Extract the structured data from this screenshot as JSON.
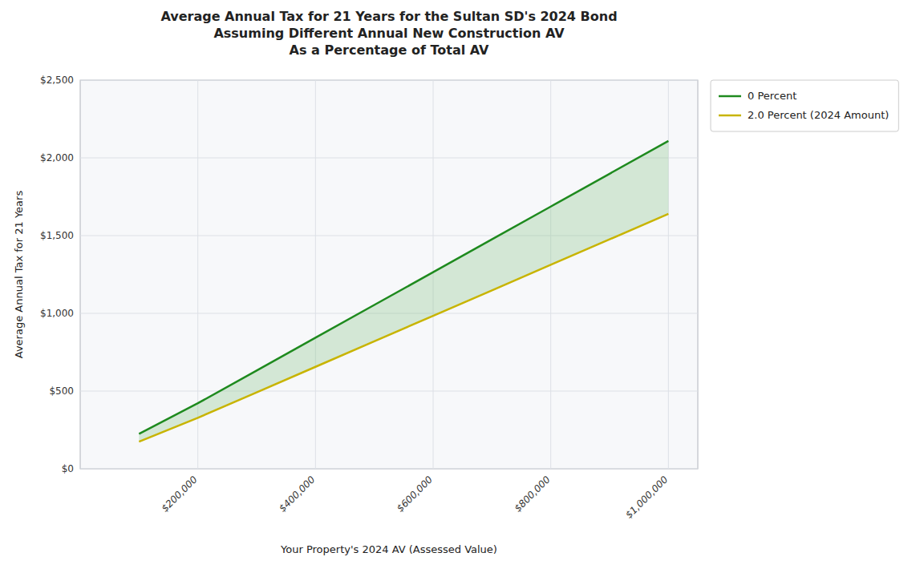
{
  "chart_data": {
    "type": "line",
    "title": "Average Annual Tax for 21 Years for the Sultan SD's 2024 Bond\nAssuming Different Annual New Construction AV\nAs a Percentage of Total AV",
    "x_label": "Your Property's 2024 AV (Assessed Value)",
    "y_label": "Average Annual Tax for 21 Years",
    "x": [
      100000,
      200000,
      300000,
      400000,
      500000,
      600000,
      700000,
      800000,
      900000,
      1000000
    ],
    "series": [
      {
        "name": "0 Percent",
        "color": "#1e8a1e",
        "values": [
          225,
          422,
          632,
          843,
          1054,
          1265,
          1476,
          1687,
          1898,
          2109
        ]
      },
      {
        "name": "2.0 Percent (2024 Amount)",
        "color": "#c8b400",
        "values": [
          175,
          328,
          492,
          656,
          820,
          984,
          1148,
          1312,
          1476,
          1640
        ]
      }
    ],
    "color": "#90c890",
    "xlim": [
      0,
      1050000
    ],
    "ylim": [
      0,
      2500
    ],
    "xticks": [
      {
        "value": 200000,
        "label": "$200,000"
      },
      {
        "value": 400000,
        "label": "$400,000"
      },
      {
        "value": 600000,
        "label": "$600,000"
      },
      {
        "value": 800000,
        "label": "$800,000"
      },
      {
        "value": 1000000,
        "label": "$1,000,000"
      }
    ],
    "yticks": [
      {
        "value": 0,
        "label": "$0"
      },
      {
        "value": 500,
        "label": "$500"
      },
      {
        "value": 1000,
        "label": "$1,000"
      },
      {
        "value": 1500,
        "label": "$1,500"
      },
      {
        "value": 2000,
        "label": "$2,000"
      },
      {
        "value": 2500,
        "label": "$2,500"
      }
    ],
    "grid": true,
    "legend": "right"
  }
}
